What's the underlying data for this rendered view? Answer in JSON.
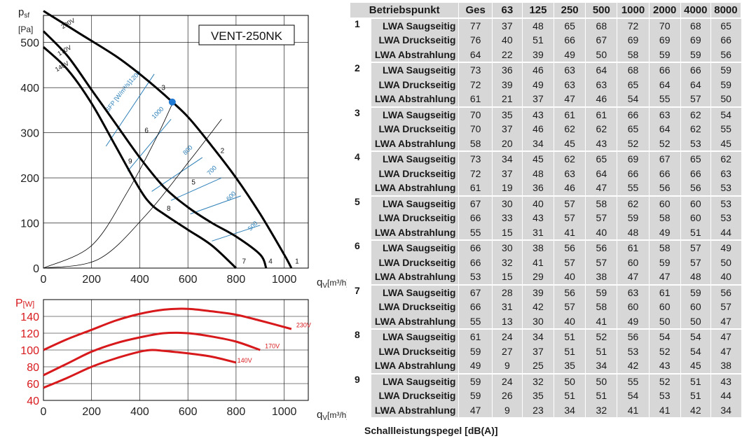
{
  "chart_data": [
    {
      "type": "line",
      "title": "VENT-250NK",
      "xlabel": "q",
      "xlabel_sub": "V",
      "xlabel_unit": "[m³/h]",
      "ylabel": "p",
      "ylabel_sub": "sf",
      "ylabel_unit": "[Pa]",
      "xlim": [
        0,
        1100
      ],
      "ylim": [
        0,
        560
      ],
      "xticks": [
        0,
        200,
        400,
        600,
        800,
        1000
      ],
      "yticks": [
        0,
        100,
        200,
        300,
        400,
        500
      ],
      "grid": true,
      "series": [
        {
          "name": "230V",
          "x": [
            0,
            150,
            300,
            400,
            500,
            600,
            700,
            800,
            900,
            1000,
            1030
          ],
          "y": [
            570,
            520,
            470,
            430,
            385,
            335,
            270,
            200,
            120,
            30,
            0
          ]
        },
        {
          "name": "170V",
          "x": [
            0,
            100,
            200,
            300,
            400,
            500,
            600,
            700,
            800,
            900,
            925
          ],
          "y": [
            525,
            470,
            395,
            320,
            245,
            180,
            135,
            100,
            70,
            30,
            0
          ]
        },
        {
          "name": "140V",
          "x": [
            0,
            100,
            200,
            300,
            400,
            450,
            500,
            600,
            700,
            800
          ],
          "y": [
            490,
            440,
            365,
            270,
            175,
            140,
            120,
            85,
            50,
            0
          ]
        }
      ],
      "system_curves": [
        {
          "label": "1",
          "x": [
            0,
            1050
          ],
          "y": [
            0,
            0
          ]
        },
        {
          "label": "2",
          "x": [
            0,
            230,
            430,
            610,
            740
          ],
          "y": [
            0,
            20,
            120,
            240,
            330
          ]
        },
        {
          "label": "3",
          "x": [
            0,
            200,
            350,
            470,
            540
          ],
          "y": [
            0,
            50,
            170,
            290,
            370
          ]
        },
        {
          "label": "4",
          "x": [
            0,
            900
          ],
          "y": [
            0,
            0
          ]
        },
        {
          "label": "5",
          "x": [
            0,
            600
          ],
          "y": [
            0,
            0
          ]
        },
        {
          "label": "6",
          "x": [
            0,
            420
          ],
          "y": [
            0,
            0
          ]
        },
        {
          "label": "7",
          "x": [
            0,
            800
          ],
          "y": [
            0,
            0
          ]
        },
        {
          "label": "8",
          "x": [
            0,
            530
          ],
          "y": [
            0,
            0
          ]
        },
        {
          "label": "9",
          "x": [
            0,
            360
          ],
          "y": [
            0,
            0
          ]
        }
      ],
      "operating_point": {
        "x": 535,
        "y": 368
      },
      "point_labels": [
        {
          "label": "1",
          "x": 1045,
          "y": 10
        },
        {
          "label": "2",
          "x": 735,
          "y": 255
        },
        {
          "label": "3",
          "x": 490,
          "y": 395
        },
        {
          "label": "4",
          "x": 935,
          "y": 10
        },
        {
          "label": "5",
          "x": 615,
          "y": 185
        },
        {
          "label": "6",
          "x": 420,
          "y": 300
        },
        {
          "label": "7",
          "x": 825,
          "y": 10
        },
        {
          "label": "8",
          "x": 512,
          "y": 127
        },
        {
          "label": "9",
          "x": 352,
          "y": 232
        }
      ],
      "sfp_lines": [
        {
          "label": "1200",
          "x": [
            260,
            460
          ],
          "y": [
            270,
            430
          ]
        },
        {
          "label": "1000",
          "x": [
            350,
            530
          ],
          "y": [
            215,
            330
          ]
        },
        {
          "label": "800",
          "x": [
            450,
            660
          ],
          "y": [
            170,
            245
          ]
        },
        {
          "label": "700",
          "x": [
            530,
            740
          ],
          "y": [
            150,
            200
          ]
        },
        {
          "label": "600",
          "x": [
            610,
            820
          ],
          "y": [
            120,
            160
          ]
        },
        {
          "label": "500",
          "x": [
            700,
            900
          ],
          "y": [
            60,
            95
          ]
        }
      ],
      "sfp_title": "SFP [W/m³/s]",
      "sfp_label_pos": [
        {
          "x": 365,
          "y": 410
        },
        {
          "x": 460,
          "y": 330
        },
        {
          "x": 590,
          "y": 250
        },
        {
          "x": 690,
          "y": 205
        },
        {
          "x": 770,
          "y": 148
        },
        {
          "x": 860,
          "y": 82
        }
      ],
      "sfp_title_pos": {
        "x": 270,
        "y": 345
      },
      "series_label_pos": [
        {
          "x": 80,
          "y": 530
        },
        {
          "x": 65,
          "y": 470
        },
        {
          "x": 55,
          "y": 435
        }
      ]
    },
    {
      "type": "line",
      "title": "",
      "xlabel": "q",
      "xlabel_sub": "V",
      "xlabel_unit": "[m³/h]",
      "ylabel": "P",
      "ylabel_unit": "[W]",
      "xlim": [
        0,
        1100
      ],
      "ylim": [
        40,
        160
      ],
      "xticks": [
        0,
        200,
        400,
        600,
        800,
        1000
      ],
      "yticks": [
        40,
        60,
        80,
        100,
        120,
        140
      ],
      "grid": true,
      "color": "#d7191c",
      "series": [
        {
          "name": "230V",
          "x": [
            0,
            100,
            200,
            300,
            400,
            500,
            600,
            700,
            800,
            900,
            1030
          ],
          "y": [
            100,
            113,
            124,
            135,
            143,
            148,
            149,
            146,
            142,
            135,
            125
          ]
        },
        {
          "name": "170V",
          "x": [
            0,
            100,
            200,
            300,
            400,
            500,
            600,
            700,
            800,
            900
          ],
          "y": [
            70,
            84,
            98,
            108,
            115,
            120,
            120,
            116,
            110,
            100
          ]
        },
        {
          "name": "140V",
          "x": [
            0,
            100,
            200,
            300,
            400,
            450,
            500,
            600,
            700,
            800
          ],
          "y": [
            55,
            67,
            80,
            90,
            98,
            100,
            99,
            96,
            92,
            85
          ]
        }
      ],
      "series_label_pos": [
        {
          "x": 1050,
          "y": 127
        },
        {
          "x": 920,
          "y": 102
        },
        {
          "x": 805,
          "y": 85
        }
      ]
    }
  ],
  "table": {
    "header_label": "Betriebspunkt",
    "columns": [
      "Ges",
      "63",
      "125",
      "250",
      "500",
      "1000",
      "2000",
      "4000",
      "8000"
    ],
    "groups": [
      {
        "point": "1",
        "rows": [
          {
            "label": "LWA Saugseitig",
            "values": [
              "77",
              "37",
              "48",
              "65",
              "68",
              "72",
              "70",
              "68",
              "65"
            ]
          },
          {
            "label": "LWA Druckseitig",
            "values": [
              "76",
              "40",
              "51",
              "66",
              "67",
              "69",
              "69",
              "69",
              "66"
            ]
          },
          {
            "label": "LWA Abstrahlung",
            "values": [
              "64",
              "22",
              "39",
              "49",
              "50",
              "58",
              "59",
              "59",
              "56"
            ]
          }
        ]
      },
      {
        "point": "2",
        "rows": [
          {
            "label": "LWA Saugseitig",
            "values": [
              "73",
              "36",
              "46",
              "63",
              "64",
              "68",
              "66",
              "66",
              "59"
            ]
          },
          {
            "label": "LWA Druckseitig",
            "values": [
              "72",
              "39",
              "49",
              "63",
              "63",
              "65",
              "64",
              "64",
              "59"
            ]
          },
          {
            "label": "LWA Abstrahlung",
            "values": [
              "61",
              "21",
              "37",
              "47",
              "46",
              "54",
              "55",
              "57",
              "50"
            ]
          }
        ]
      },
      {
        "point": "3",
        "rows": [
          {
            "label": "LWA Saugseitig",
            "values": [
              "70",
              "35",
              "43",
              "61",
              "61",
              "66",
              "63",
              "62",
              "54"
            ]
          },
          {
            "label": "LWA Druckseitig",
            "values": [
              "70",
              "37",
              "46",
              "62",
              "62",
              "65",
              "64",
              "62",
              "55"
            ]
          },
          {
            "label": "LWA Abstrahlung",
            "values": [
              "58",
              "20",
              "34",
              "45",
              "43",
              "52",
              "52",
              "53",
              "45"
            ]
          }
        ]
      },
      {
        "point": "4",
        "rows": [
          {
            "label": "LWA Saugseitig",
            "values": [
              "73",
              "34",
              "45",
              "62",
              "65",
              "69",
              "67",
              "65",
              "62"
            ]
          },
          {
            "label": "LWA Druckseitig",
            "values": [
              "72",
              "37",
              "48",
              "63",
              "64",
              "66",
              "66",
              "66",
              "63"
            ]
          },
          {
            "label": "LWA Abstrahlung",
            "values": [
              "61",
              "19",
              "36",
              "46",
              "47",
              "55",
              "56",
              "56",
              "53"
            ]
          }
        ]
      },
      {
        "point": "5",
        "rows": [
          {
            "label": "LWA Saugseitig",
            "values": [
              "67",
              "30",
              "40",
              "57",
              "58",
              "62",
              "60",
              "60",
              "53"
            ]
          },
          {
            "label": "LWA Druckseitig",
            "values": [
              "66",
              "33",
              "43",
              "57",
              "57",
              "59",
              "58",
              "60",
              "53"
            ]
          },
          {
            "label": "LWA Abstrahlung",
            "values": [
              "55",
              "15",
              "31",
              "41",
              "40",
              "48",
              "49",
              "51",
              "44"
            ]
          }
        ]
      },
      {
        "point": "6",
        "rows": [
          {
            "label": "LWA Saugseitig",
            "values": [
              "66",
              "30",
              "38",
              "56",
              "56",
              "61",
              "58",
              "57",
              "49"
            ]
          },
          {
            "label": "LWA Druckseitig",
            "values": [
              "66",
              "32",
              "41",
              "57",
              "57",
              "60",
              "59",
              "57",
              "50"
            ]
          },
          {
            "label": "LWA Abstrahlung",
            "values": [
              "53",
              "15",
              "29",
              "40",
              "38",
              "47",
              "47",
              "48",
              "40"
            ]
          }
        ]
      },
      {
        "point": "7",
        "rows": [
          {
            "label": "LWA Saugseitig",
            "values": [
              "67",
              "28",
              "39",
              "56",
              "59",
              "63",
              "61",
              "59",
              "56"
            ]
          },
          {
            "label": "LWA Druckseitig",
            "values": [
              "66",
              "31",
              "42",
              "57",
              "58",
              "60",
              "60",
              "60",
              "57"
            ]
          },
          {
            "label": "LWA Abstrahlung",
            "values": [
              "55",
              "13",
              "30",
              "40",
              "41",
              "49",
              "50",
              "50",
              "47"
            ]
          }
        ]
      },
      {
        "point": "8",
        "rows": [
          {
            "label": "LWA Saugseitig",
            "values": [
              "61",
              "24",
              "34",
              "51",
              "52",
              "56",
              "54",
              "54",
              "47"
            ]
          },
          {
            "label": "LWA Druckseitig",
            "values": [
              "59",
              "27",
              "37",
              "51",
              "51",
              "53",
              "52",
              "54",
              "47"
            ]
          },
          {
            "label": "LWA Abstrahlung",
            "values": [
              "49",
              "9",
              "25",
              "35",
              "34",
              "42",
              "43",
              "45",
              "38"
            ]
          }
        ]
      },
      {
        "point": "9",
        "rows": [
          {
            "label": "LWA Saugseitig",
            "values": [
              "59",
              "24",
              "32",
              "50",
              "50",
              "55",
              "52",
              "51",
              "43"
            ]
          },
          {
            "label": "LWA Druckseitig",
            "values": [
              "59",
              "26",
              "35",
              "51",
              "51",
              "54",
              "53",
              "51",
              "44"
            ]
          },
          {
            "label": "LWA Abstrahlung",
            "values": [
              "47",
              "9",
              "23",
              "34",
              "32",
              "41",
              "41",
              "42",
              "34"
            ]
          }
        ]
      }
    ]
  },
  "footer": "Schallleistungspegel [dB(A)]"
}
